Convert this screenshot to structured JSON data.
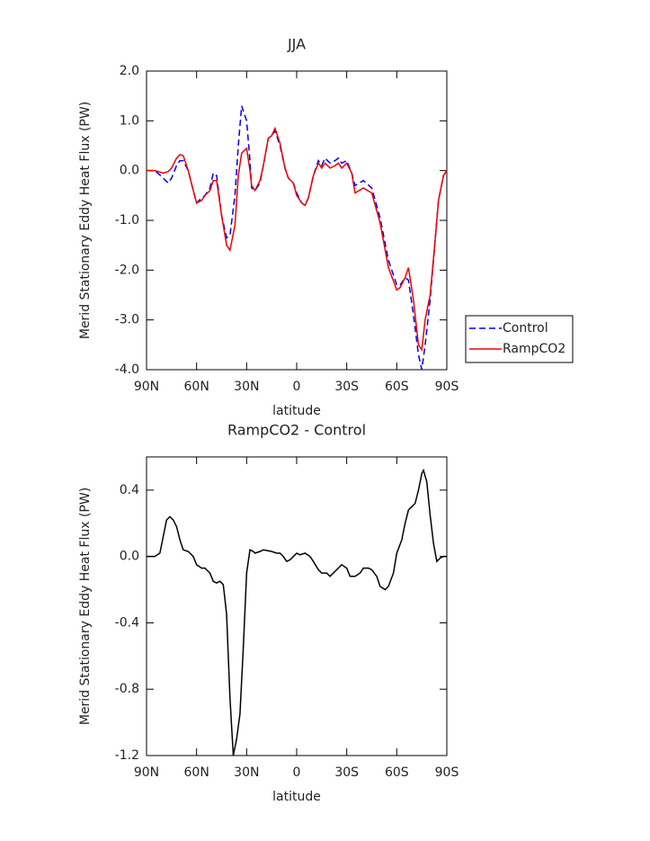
{
  "chart_data": [
    {
      "type": "line",
      "title": "JJA",
      "xlabel": "latitude",
      "ylabel": "Merid Stationary Eddy Heat Flux (PW)",
      "x": [
        90,
        85,
        80,
        77,
        75,
        72,
        70,
        68,
        65,
        62,
        60,
        57,
        55,
        52,
        50,
        48,
        45,
        42,
        40,
        37,
        35,
        33,
        30,
        28,
        27,
        25,
        22,
        20,
        17,
        15,
        13,
        10,
        7,
        5,
        2,
        0,
        -3,
        -5,
        -7,
        -10,
        -13,
        -15,
        -17,
        -20,
        -23,
        -25,
        -27,
        -30,
        -33,
        -35,
        -40,
        -45,
        -50,
        -55,
        -60,
        -62,
        -65,
        -67,
        -70,
        -73,
        -75,
        -77,
        -80,
        -83,
        -85,
        -88,
        -90
      ],
      "series": [
        {
          "name": "Control",
          "color": "#0000ee",
          "line_style": "dashed",
          "values": [
            0,
            0,
            -0.15,
            -0.25,
            -0.15,
            0.1,
            0.2,
            0.2,
            0.0,
            -0.4,
            -0.65,
            -0.55,
            -0.5,
            -0.35,
            -0.05,
            -0.1,
            -0.9,
            -1.35,
            -1.3,
            -0.5,
            0.5,
            1.3,
            1.0,
            0.2,
            -0.35,
            -0.4,
            -0.25,
            0.1,
            0.65,
            0.7,
            0.8,
            0.5,
            0.05,
            -0.15,
            -0.25,
            -0.45,
            -0.65,
            -0.7,
            -0.55,
            -0.1,
            0.2,
            0.1,
            0.25,
            0.15,
            0.2,
            0.25,
            0.15,
            0.2,
            -0.05,
            -0.3,
            -0.2,
            -0.35,
            -0.95,
            -1.8,
            -2.3,
            -2.3,
            -2.15,
            -2.2,
            -2.9,
            -3.7,
            -4.0,
            -3.5,
            -2.6,
            -1.4,
            -0.6,
            -0.1,
            0
          ]
        },
        {
          "name": "RampCO2",
          "color": "#ee0000",
          "line_style": "solid",
          "values": [
            0,
            0,
            -0.05,
            -0.02,
            0.05,
            0.25,
            0.32,
            0.3,
            0.0,
            -0.4,
            -0.65,
            -0.6,
            -0.5,
            -0.4,
            -0.2,
            -0.2,
            -0.9,
            -1.5,
            -1.6,
            -1.1,
            -0.1,
            0.35,
            0.45,
            0.0,
            -0.3,
            -0.4,
            -0.2,
            0.1,
            0.65,
            0.7,
            0.85,
            0.55,
            0.05,
            -0.15,
            -0.25,
            -0.5,
            -0.65,
            -0.7,
            -0.55,
            -0.1,
            0.15,
            0.05,
            0.15,
            0.05,
            0.1,
            0.15,
            0.05,
            0.15,
            -0.05,
            -0.45,
            -0.35,
            -0.45,
            -1.05,
            -1.95,
            -2.4,
            -2.35,
            -2.15,
            -1.95,
            -2.6,
            -3.5,
            -3.6,
            -3.0,
            -2.5,
            -1.4,
            -0.6,
            -0.1,
            0
          ]
        }
      ],
      "xlim": [
        90,
        -90
      ],
      "xticks": [
        {
          "value": 90,
          "label": "90N"
        },
        {
          "value": 60,
          "label": "60N"
        },
        {
          "value": 30,
          "label": "30N"
        },
        0,
        {
          "value": -30,
          "label": "30S"
        },
        {
          "value": -60,
          "label": "60S"
        },
        {
          "value": -90,
          "label": "90S"
        }
      ],
      "ylim": [
        -4,
        2
      ],
      "yticks": [
        {
          "value": 2,
          "label": "2.0"
        },
        {
          "value": 1,
          "label": "1.0"
        },
        {
          "value": 0,
          "label": "0.0"
        },
        {
          "value": -1,
          "label": "-1.0"
        },
        {
          "value": -2,
          "label": "-2.0"
        },
        {
          "value": -3,
          "label": "-3.0"
        },
        {
          "value": -4,
          "label": "-4.0"
        }
      ],
      "legend": "right"
    },
    {
      "type": "line",
      "title": "RampCO2 - Control",
      "xlabel": "latitude",
      "ylabel": "Merid Stationary Eddy Heat Flux (PW)",
      "x": [
        90,
        85,
        82,
        80,
        78,
        76,
        74,
        72,
        70,
        68,
        65,
        62,
        60,
        57,
        55,
        52,
        50,
        48,
        46,
        44,
        42,
        40,
        38,
        36,
        34,
        32,
        30,
        28,
        26,
        25,
        22,
        20,
        15,
        12,
        10,
        8,
        6,
        4,
        2,
        0,
        -2,
        -5,
        -8,
        -10,
        -13,
        -15,
        -18,
        -20,
        -23,
        -27,
        -30,
        -32,
        -35,
        -38,
        -40,
        -43,
        -45,
        -48,
        -50,
        -53,
        -55,
        -58,
        -60,
        -63,
        -65,
        -67,
        -69,
        -71,
        -73,
        -75,
        -76,
        -78,
        -80,
        -82,
        -84,
        -86,
        -88,
        -90
      ],
      "color": "#000000",
      "values": [
        0,
        0,
        0.02,
        0.12,
        0.22,
        0.24,
        0.22,
        0.18,
        0.1,
        0.04,
        0.03,
        0.0,
        -0.05,
        -0.07,
        -0.07,
        -0.1,
        -0.15,
        -0.16,
        -0.15,
        -0.17,
        -0.35,
        -0.85,
        -1.2,
        -1.1,
        -0.95,
        -0.55,
        -0.1,
        0.04,
        0.03,
        0.02,
        0.03,
        0.04,
        0.03,
        0.02,
        0.02,
        0.0,
        -0.03,
        -0.02,
        0.0,
        0.02,
        0.01,
        0.02,
        0.0,
        -0.03,
        -0.08,
        -0.1,
        -0.1,
        -0.12,
        -0.09,
        -0.05,
        -0.07,
        -0.12,
        -0.12,
        -0.1,
        -0.07,
        -0.07,
        -0.08,
        -0.12,
        -0.18,
        -0.2,
        -0.18,
        -0.1,
        0.02,
        0.1,
        0.2,
        0.28,
        0.3,
        0.32,
        0.4,
        0.5,
        0.52,
        0.45,
        0.25,
        0.08,
        -0.03,
        -0.01,
        0.0,
        0
      ],
      "xlim": [
        90,
        -90
      ],
      "xticks": [
        {
          "value": 90,
          "label": "90N"
        },
        {
          "value": 60,
          "label": "60N"
        },
        {
          "value": 30,
          "label": "30N"
        },
        0,
        {
          "value": -30,
          "label": "30S"
        },
        {
          "value": -60,
          "label": "60S"
        },
        {
          "value": -90,
          "label": "90S"
        }
      ],
      "ylim": [
        -1.2,
        0.6
      ],
      "yticks": [
        0.4,
        {
          "value": 0,
          "label": "0.0"
        },
        -0.4,
        -0.8,
        -1.2
      ]
    }
  ]
}
